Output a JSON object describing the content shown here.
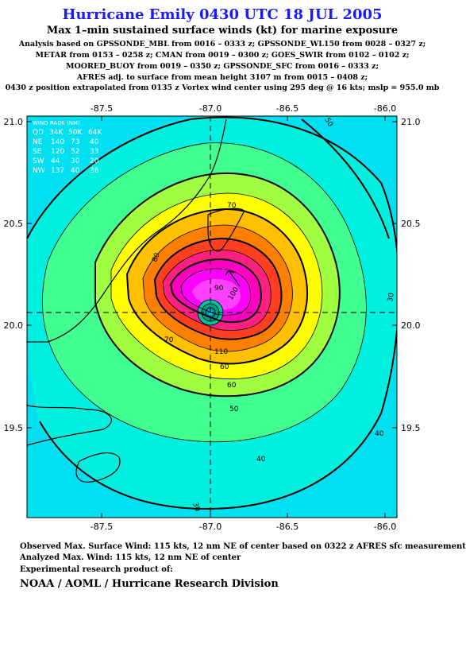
{
  "title": "Hurricane Emily 0430 UTC 18 JUL 2005",
  "subtitle": "Max 1–min sustained surface winds (kt) for marine exposure",
  "analysis_lines": [
    "Analysis based on  GPSSONDE_MBL from 0016 – 0333 z;  GPSSONDE_WL150 from 0028 – 0327 z;",
    "METAR from 0153 – 0258 z;  CMAN from 0019 – 0300 z;  GOES_SWIR from 0102 – 0102 z;",
    "MOORED_BUOY from 0019 – 0350 z;  GPSSONDE_SFC from 0016 – 0333 z;",
    "AFRES adj. to surface from mean height 3107 m from 0015 – 0408 z;",
    "0430 z position extrapolated from 0135 z Vortex wind center using 295 deg @ 16 kts; mslp = 955.0 mb"
  ],
  "map": {
    "lon_ticks": [
      "-87.5",
      "-87.0",
      "-86.5",
      "-86.0"
    ],
    "lat_ticks": [
      "21.0",
      "20.5",
      "20.0",
      "19.5"
    ],
    "contour_labels": [
      "30",
      "40",
      "50",
      "50",
      "60",
      "70",
      "70",
      "80",
      "90",
      "100",
      "110",
      "30",
      "40",
      "60"
    ],
    "wind_radii": {
      "header": [
        "QD",
        "34K",
        "50K",
        "64K"
      ],
      "title": "WIND RADII (NM)",
      "rows": [
        [
          "NE",
          "140",
          "73",
          "40"
        ],
        [
          "SE",
          "120",
          "52",
          "33"
        ],
        [
          "SW",
          "44",
          "30",
          "20"
        ],
        [
          "NW",
          "137",
          "40",
          "36"
        ]
      ]
    },
    "storm_motion": "295 deg @ 16 kts"
  },
  "footer": {
    "observed": "Observed Max. Surface Wind: 115 kts, 12 nm NE of center based on 0322 z AFRES sfc measurement",
    "analyzed": "Analyzed Max. Wind: 115 kts, 12 nm NE of center",
    "experimental": "Experimental research product of:",
    "org": "NOAA / AOML / Hurricane Research Division"
  },
  "colors": {
    "title": "#1a1aff",
    "c_lt40": "#00e0f0",
    "c_40": "#00f0e0",
    "c_50": "#40ff90",
    "c_60": "#a0ff40",
    "c_65": "#ffff00",
    "c_70": "#ffc000",
    "c_75": "#ff8000",
    "c_80": "#ff4020",
    "c_85": "#ff2080",
    "c_90": "#ff00c0",
    "c_100": "#ff00ff"
  }
}
